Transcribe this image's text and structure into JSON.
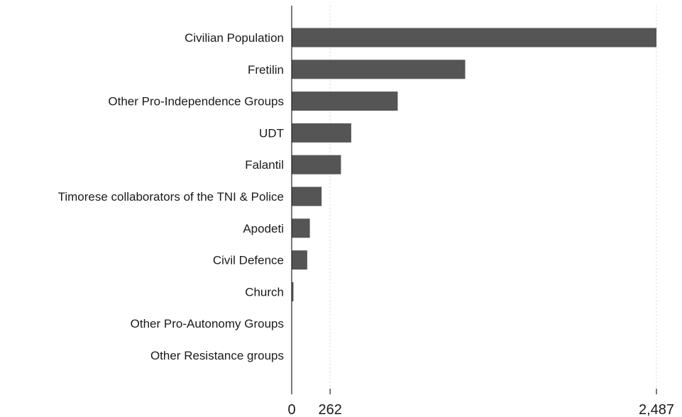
{
  "chart_data": {
    "type": "bar",
    "orientation": "horizontal",
    "categories": [
      "Civilian Population",
      "Fretilin",
      "Other Pro-Independence Groups",
      "UDT",
      "Falantil",
      "Timorese collaborators of the TNI & Police",
      "Apodeti",
      "Civil Defence",
      "Church",
      "Other Pro-Autonomy Groups",
      "Other Resistance groups"
    ],
    "values": [
      2487,
      1183,
      723,
      406,
      336,
      204,
      124,
      106,
      12,
      0,
      0
    ],
    "xticks": [
      0,
      262,
      2487
    ],
    "xtick_labels": [
      "0",
      "262",
      "2,487"
    ],
    "xlim": [
      0,
      2487
    ],
    "grid": "vertical-dotted",
    "colors": {
      "bar": "#555555"
    }
  }
}
